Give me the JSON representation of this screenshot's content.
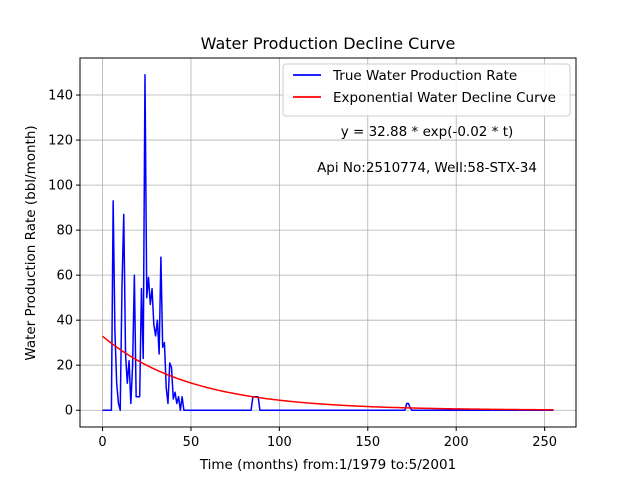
{
  "chart_data": {
    "type": "line",
    "title": "Water Production Decline Curve",
    "xlabel": "Time (months) from:1/1979 to:5/2001",
    "ylabel": "Water Production Rate (bbl/month)",
    "xlim": [
      -12.75,
      267.75
    ],
    "ylim": [
      -7.45,
      156.45
    ],
    "xticks": [
      0,
      50,
      100,
      150,
      200,
      250
    ],
    "yticks": [
      0,
      20,
      40,
      60,
      80,
      100,
      120,
      140
    ],
    "grid": true,
    "legend_position": "top-right",
    "annotations": [
      "y = 32.88 * exp(-0.02 * t)",
      "Api No:2510774, Well:58-STX-34"
    ],
    "series": [
      {
        "name": "True Water Production Rate",
        "color": "#0000ff",
        "points": [
          [
            0,
            0
          ],
          [
            5,
            0
          ],
          [
            6,
            93
          ],
          [
            7,
            35
          ],
          [
            8,
            12
          ],
          [
            9,
            3
          ],
          [
            10,
            0
          ],
          [
            11,
            55
          ],
          [
            12,
            87
          ],
          [
            13,
            25
          ],
          [
            14,
            12
          ],
          [
            15,
            22
          ],
          [
            16,
            3
          ],
          [
            17,
            20
          ],
          [
            18,
            60
          ],
          [
            19,
            6
          ],
          [
            20,
            6
          ],
          [
            21,
            6
          ],
          [
            22,
            54
          ],
          [
            23,
            23
          ],
          [
            24,
            149
          ],
          [
            25,
            50
          ],
          [
            26,
            59
          ],
          [
            27,
            47
          ],
          [
            28,
            54
          ],
          [
            29,
            38
          ],
          [
            30,
            33
          ],
          [
            31,
            40
          ],
          [
            32,
            25
          ],
          [
            33,
            68
          ],
          [
            34,
            28
          ],
          [
            35,
            30
          ],
          [
            36,
            10
          ],
          [
            37,
            3
          ],
          [
            38,
            21
          ],
          [
            39,
            19
          ],
          [
            40,
            5
          ],
          [
            41,
            8
          ],
          [
            42,
            3
          ],
          [
            43,
            6
          ],
          [
            44,
            0
          ],
          [
            45,
            6
          ],
          [
            46,
            0
          ],
          [
            84,
            0
          ],
          [
            85,
            6
          ],
          [
            88,
            6
          ],
          [
            89,
            0
          ],
          [
            171,
            0
          ],
          [
            172,
            3
          ],
          [
            173,
            3
          ],
          [
            174,
            1
          ],
          [
            175,
            0
          ],
          [
            255,
            0
          ]
        ]
      },
      {
        "name": "Exponential Water Decline Curve",
        "color": "#ff0000",
        "a": 32.88,
        "b": -0.02,
        "t_range": [
          0,
          255
        ]
      }
    ]
  }
}
